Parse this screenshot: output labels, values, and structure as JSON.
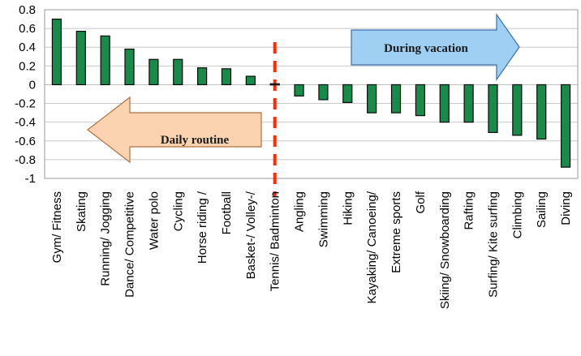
{
  "chart_data": {
    "type": "bar",
    "title": "",
    "xlabel": "",
    "ylabel": "",
    "ylim": [
      -1,
      0.8
    ],
    "yticks": [
      "0.8",
      "0.6",
      "0.4",
      "0.2",
      "0",
      "-0.2",
      "-0.4",
      "-0.6",
      "-0.8",
      "-1"
    ],
    "grid": true,
    "categories": [
      "Gym/ Fitness",
      "Skating",
      "Running/ Jogging",
      "Dance/ Competitive",
      "Water polo",
      "Cycling",
      "Horse riding /",
      "Football",
      "Basket-/ Volley-/",
      "Tennis/ Badminton",
      "Angling",
      "Swimming",
      "Hiking",
      "Kayaking/ Canoeing/",
      "Extreme sports",
      "Golf",
      "Skiing/ Snowboarding",
      "Rafting",
      "Surfing/ Kite surfing",
      "Climbing",
      "Sailing",
      "Diving"
    ],
    "values": [
      0.7,
      0.57,
      0.52,
      0.38,
      0.27,
      0.27,
      0.18,
      0.17,
      0.09,
      0.01,
      -0.12,
      -0.16,
      -0.19,
      -0.3,
      -0.3,
      -0.33,
      -0.4,
      -0.4,
      -0.51,
      -0.54,
      -0.58,
      -0.88
    ],
    "colors": {
      "bar_fill": "#1a8a4a",
      "bar_stroke": "#0a0a0a",
      "grid_dark": "#c8c8c8",
      "grid_light": "#e4e4e4",
      "plot_bg": "#ffffff",
      "divider": "#ff2a00"
    },
    "annotations": {
      "right_arrow": {
        "text": "During vacation",
        "fill": "#9fd0f3",
        "stroke": "#3a6fa8"
      },
      "left_arrow": {
        "text": "Daily routine",
        "fill": "#fcd3b0",
        "stroke": "#b07040"
      }
    }
  }
}
